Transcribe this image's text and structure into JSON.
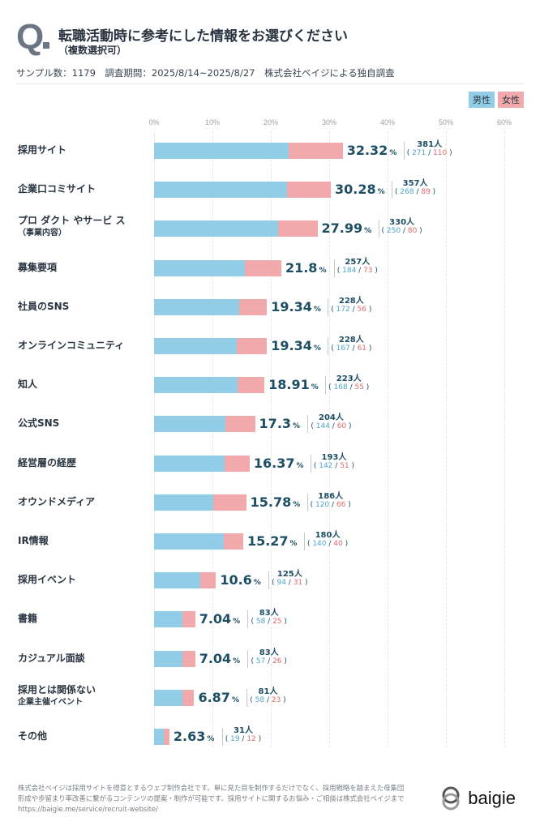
{
  "header": {
    "q_mark": "Q",
    "title": "転職活動時に参考にした情報をお選びください",
    "subtitle": "（複数選択可）",
    "meta": "サンプル数：1179　調査期間：2025/8/14~2025/8/27　株式会社ベイジによる独自調査"
  },
  "legend": {
    "male": "男性",
    "female": "女性",
    "male_color": "#92cde8",
    "female_color": "#f1a9ab"
  },
  "chart_data": {
    "type": "bar",
    "orientation": "horizontal-stacked",
    "title": "転職活動時に参考にした情報をお選びください（複数選択可）",
    "xlabel": "",
    "ylabel": "",
    "xlim": [
      0,
      60
    ],
    "x_ticks": [
      "0%",
      "10%",
      "20%",
      "30%",
      "40%",
      "50%",
      "60%"
    ],
    "grid": true,
    "legend_position": "top-right",
    "series_names": [
      "男性",
      "女性"
    ],
    "percent_unit": "%",
    "count_unit": "人",
    "rows": [
      {
        "label": "採用サイト",
        "sublabel": "",
        "percent": 32.32,
        "percent_text": "32.32",
        "total": 381,
        "male": 271,
        "female": 110
      },
      {
        "label": "企業口コミサイト",
        "sublabel": "",
        "percent": 30.28,
        "percent_text": "30.28",
        "total": 357,
        "male": 268,
        "female": 89
      },
      {
        "label": "プロ ダクト やサービ ス",
        "sublabel": "（事業内容）",
        "percent": 27.99,
        "percent_text": "27.99",
        "total": 330,
        "male": 250,
        "female": 80
      },
      {
        "label": "募集要項",
        "sublabel": "",
        "percent": 21.8,
        "percent_text": "21.8",
        "total": 257,
        "male": 184,
        "female": 73
      },
      {
        "label": "社員のSNS",
        "sublabel": "",
        "percent": 19.34,
        "percent_text": "19.34",
        "total": 228,
        "male": 172,
        "female": 56
      },
      {
        "label": "オンラインコミュニティ",
        "sublabel": "",
        "percent": 19.34,
        "percent_text": "19.34",
        "total": 228,
        "male": 167,
        "female": 61
      },
      {
        "label": "知人",
        "sublabel": "",
        "percent": 18.91,
        "percent_text": "18.91",
        "total": 223,
        "male": 168,
        "female": 55
      },
      {
        "label": "公式SNS",
        "sublabel": "",
        "percent": 17.3,
        "percent_text": "17.3",
        "total": 204,
        "male": 144,
        "female": 60
      },
      {
        "label": "経営層の経歴",
        "sublabel": "",
        "percent": 16.37,
        "percent_text": "16.37",
        "total": 193,
        "male": 142,
        "female": 51
      },
      {
        "label": "オウンドメディア",
        "sublabel": "",
        "percent": 15.78,
        "percent_text": "15.78",
        "total": 186,
        "male": 120,
        "female": 66
      },
      {
        "label": "IR情報",
        "sublabel": "",
        "percent": 15.27,
        "percent_text": "15.27",
        "total": 180,
        "male": 140,
        "female": 40
      },
      {
        "label": "採用イベント",
        "sublabel": "",
        "percent": 10.6,
        "percent_text": "10.6",
        "total": 125,
        "male": 94,
        "female": 31
      },
      {
        "label": "書籍",
        "sublabel": "",
        "percent": 7.04,
        "percent_text": "7.04",
        "total": 83,
        "male": 58,
        "female": 25
      },
      {
        "label": "カジュアル面談",
        "sublabel": "",
        "percent": 7.04,
        "percent_text": "7.04",
        "total": 83,
        "male": 57,
        "female": 26
      },
      {
        "label": "採用とは関係ない",
        "sublabel": "企業主催イベント",
        "percent": 6.87,
        "percent_text": "6.87",
        "total": 81,
        "male": 58,
        "female": 23
      },
      {
        "label": "その他",
        "sublabel": "",
        "percent": 2.63,
        "percent_text": "2.63",
        "total": 31,
        "male": 19,
        "female": 12
      }
    ]
  },
  "footer": {
    "text_line1": "株式会社ベイジは採用サイトを得意とするウェブ制作会社です。単に見た目を制作するだけでなく、採用戦略を踏まえた母集団",
    "text_line2": "形成や歩留まり率改善に繋がるコンテンツの提案・制作が可能です。採用サイトに関するお悩み・ご相談は株式会社ベイジまで",
    "url": "https://baigie.me/service/recruit-website/",
    "logo_text": "baigie"
  }
}
